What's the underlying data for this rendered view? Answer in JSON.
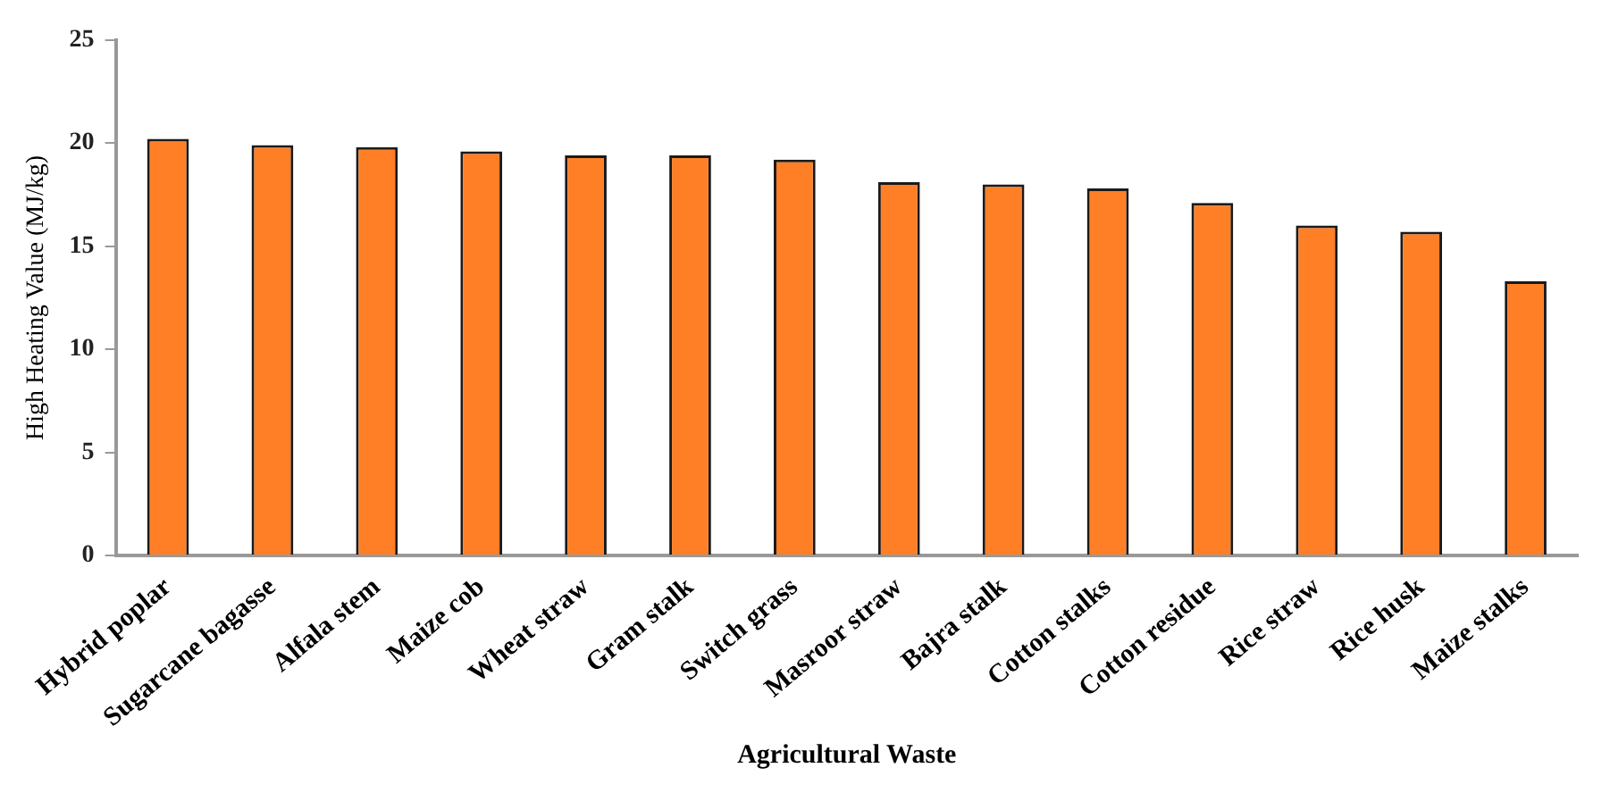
{
  "chart_data": {
    "type": "bar",
    "xlabel": "Agricultural Waste",
    "ylabel": "High Heating Value (MJ/kg)",
    "categories": [
      "Hybrid poplar",
      "Sugarcane bagasse",
      "Alfala stem",
      "Maize cob",
      "Wheat straw",
      "Gram stalk",
      "Switch grass",
      "Masroor straw",
      "Bajra stalk",
      "Cotton stalks",
      "Cotton residue",
      "Rice straw",
      "Rice husk",
      "Maize stalks"
    ],
    "values": [
      20.2,
      19.9,
      19.8,
      19.6,
      19.4,
      19.4,
      19.2,
      18.1,
      18.0,
      17.8,
      17.1,
      16.0,
      15.7,
      13.3
    ],
    "color": "#ff7f27",
    "ylim": [
      0,
      25
    ],
    "yticks": [
      0,
      5,
      10,
      15,
      20,
      25
    ],
    "grid": false,
    "legend": false
  }
}
